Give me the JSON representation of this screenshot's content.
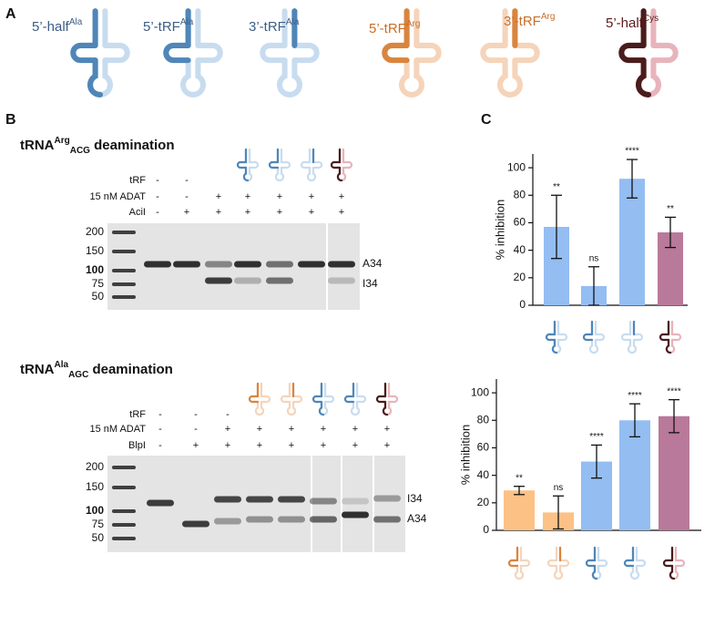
{
  "panel_a": {
    "label": "A",
    "trfs": [
      {
        "name": "5’-half",
        "sup": "Ala"
      },
      {
        "name": "5’-tRF",
        "sup": "Ala"
      },
      {
        "name": "3’-tRF",
        "sup": "Ala"
      },
      {
        "name": "5’-tRF",
        "sup": "Arg"
      },
      {
        "name": "3’-tRF",
        "sup": "Arg"
      },
      {
        "name": "5’-half",
        "sup": "Cys"
      }
    ]
  },
  "panel_b": {
    "label": "B",
    "gels": [
      {
        "title": {
          "main": "tRNA",
          "sup": "Arg",
          "sub": "ACG",
          "rest": " deamination"
        },
        "row_labels": [
          "tRF",
          "15 nM ADAT",
          "AciI"
        ],
        "rows": [
          [
            "-",
            "-"
          ],
          [
            "-",
            "-",
            "+",
            "+",
            "+",
            "+",
            "+"
          ],
          [
            "-",
            "+",
            "+",
            "+",
            "+",
            "+",
            "+"
          ]
        ],
        "ladder": [
          "200",
          "150",
          "100",
          "75",
          "50"
        ],
        "band_labels": [
          "A34",
          "I34"
        ]
      },
      {
        "title": {
          "main": "tRNA",
          "sup": "Ala",
          "sub": "AGC",
          "rest": " deamination"
        },
        "row_labels": [
          "tRF",
          "15 nM ADAT",
          "BlpI"
        ],
        "rows": [
          [
            "-",
            "-",
            "-"
          ],
          [
            "-",
            "-",
            "+",
            "+",
            "+",
            "+",
            "+",
            "+"
          ],
          [
            "-",
            "+",
            "+",
            "+",
            "+",
            "+",
            "+",
            "+"
          ]
        ],
        "ladder": [
          "200",
          "150",
          "100",
          "75",
          "50"
        ],
        "band_labels": [
          "I34",
          "A34"
        ]
      }
    ]
  },
  "panel_c": {
    "label": "C"
  },
  "chart_data": [
    {
      "type": "bar",
      "ylabel": "% inhibition",
      "values": [
        57,
        14,
        92,
        53
      ],
      "errors": [
        23,
        14,
        14,
        11
      ],
      "annotations": [
        "**",
        "ns",
        "****",
        "**"
      ],
      "colors": [
        "#94bdf2",
        "#94bdf2",
        "#94bdf2",
        "#b9799a"
      ],
      "ylim": [
        0,
        110
      ],
      "yticks": [
        0,
        20,
        40,
        60,
        80,
        100
      ]
    },
    {
      "type": "bar",
      "ylabel": "% inhibition",
      "values": [
        29,
        13,
        50,
        80,
        83
      ],
      "errors": [
        3,
        12,
        12,
        12,
        12
      ],
      "annotations": [
        "**",
        "ns",
        "****",
        "****",
        "****"
      ],
      "colors": [
        "#fcc185",
        "#fcc185",
        "#94bdf2",
        "#94bdf2",
        "#b9799a"
      ],
      "ylim": [
        0,
        110
      ],
      "yticks": [
        0,
        20,
        40,
        60,
        80,
        100
      ]
    }
  ]
}
